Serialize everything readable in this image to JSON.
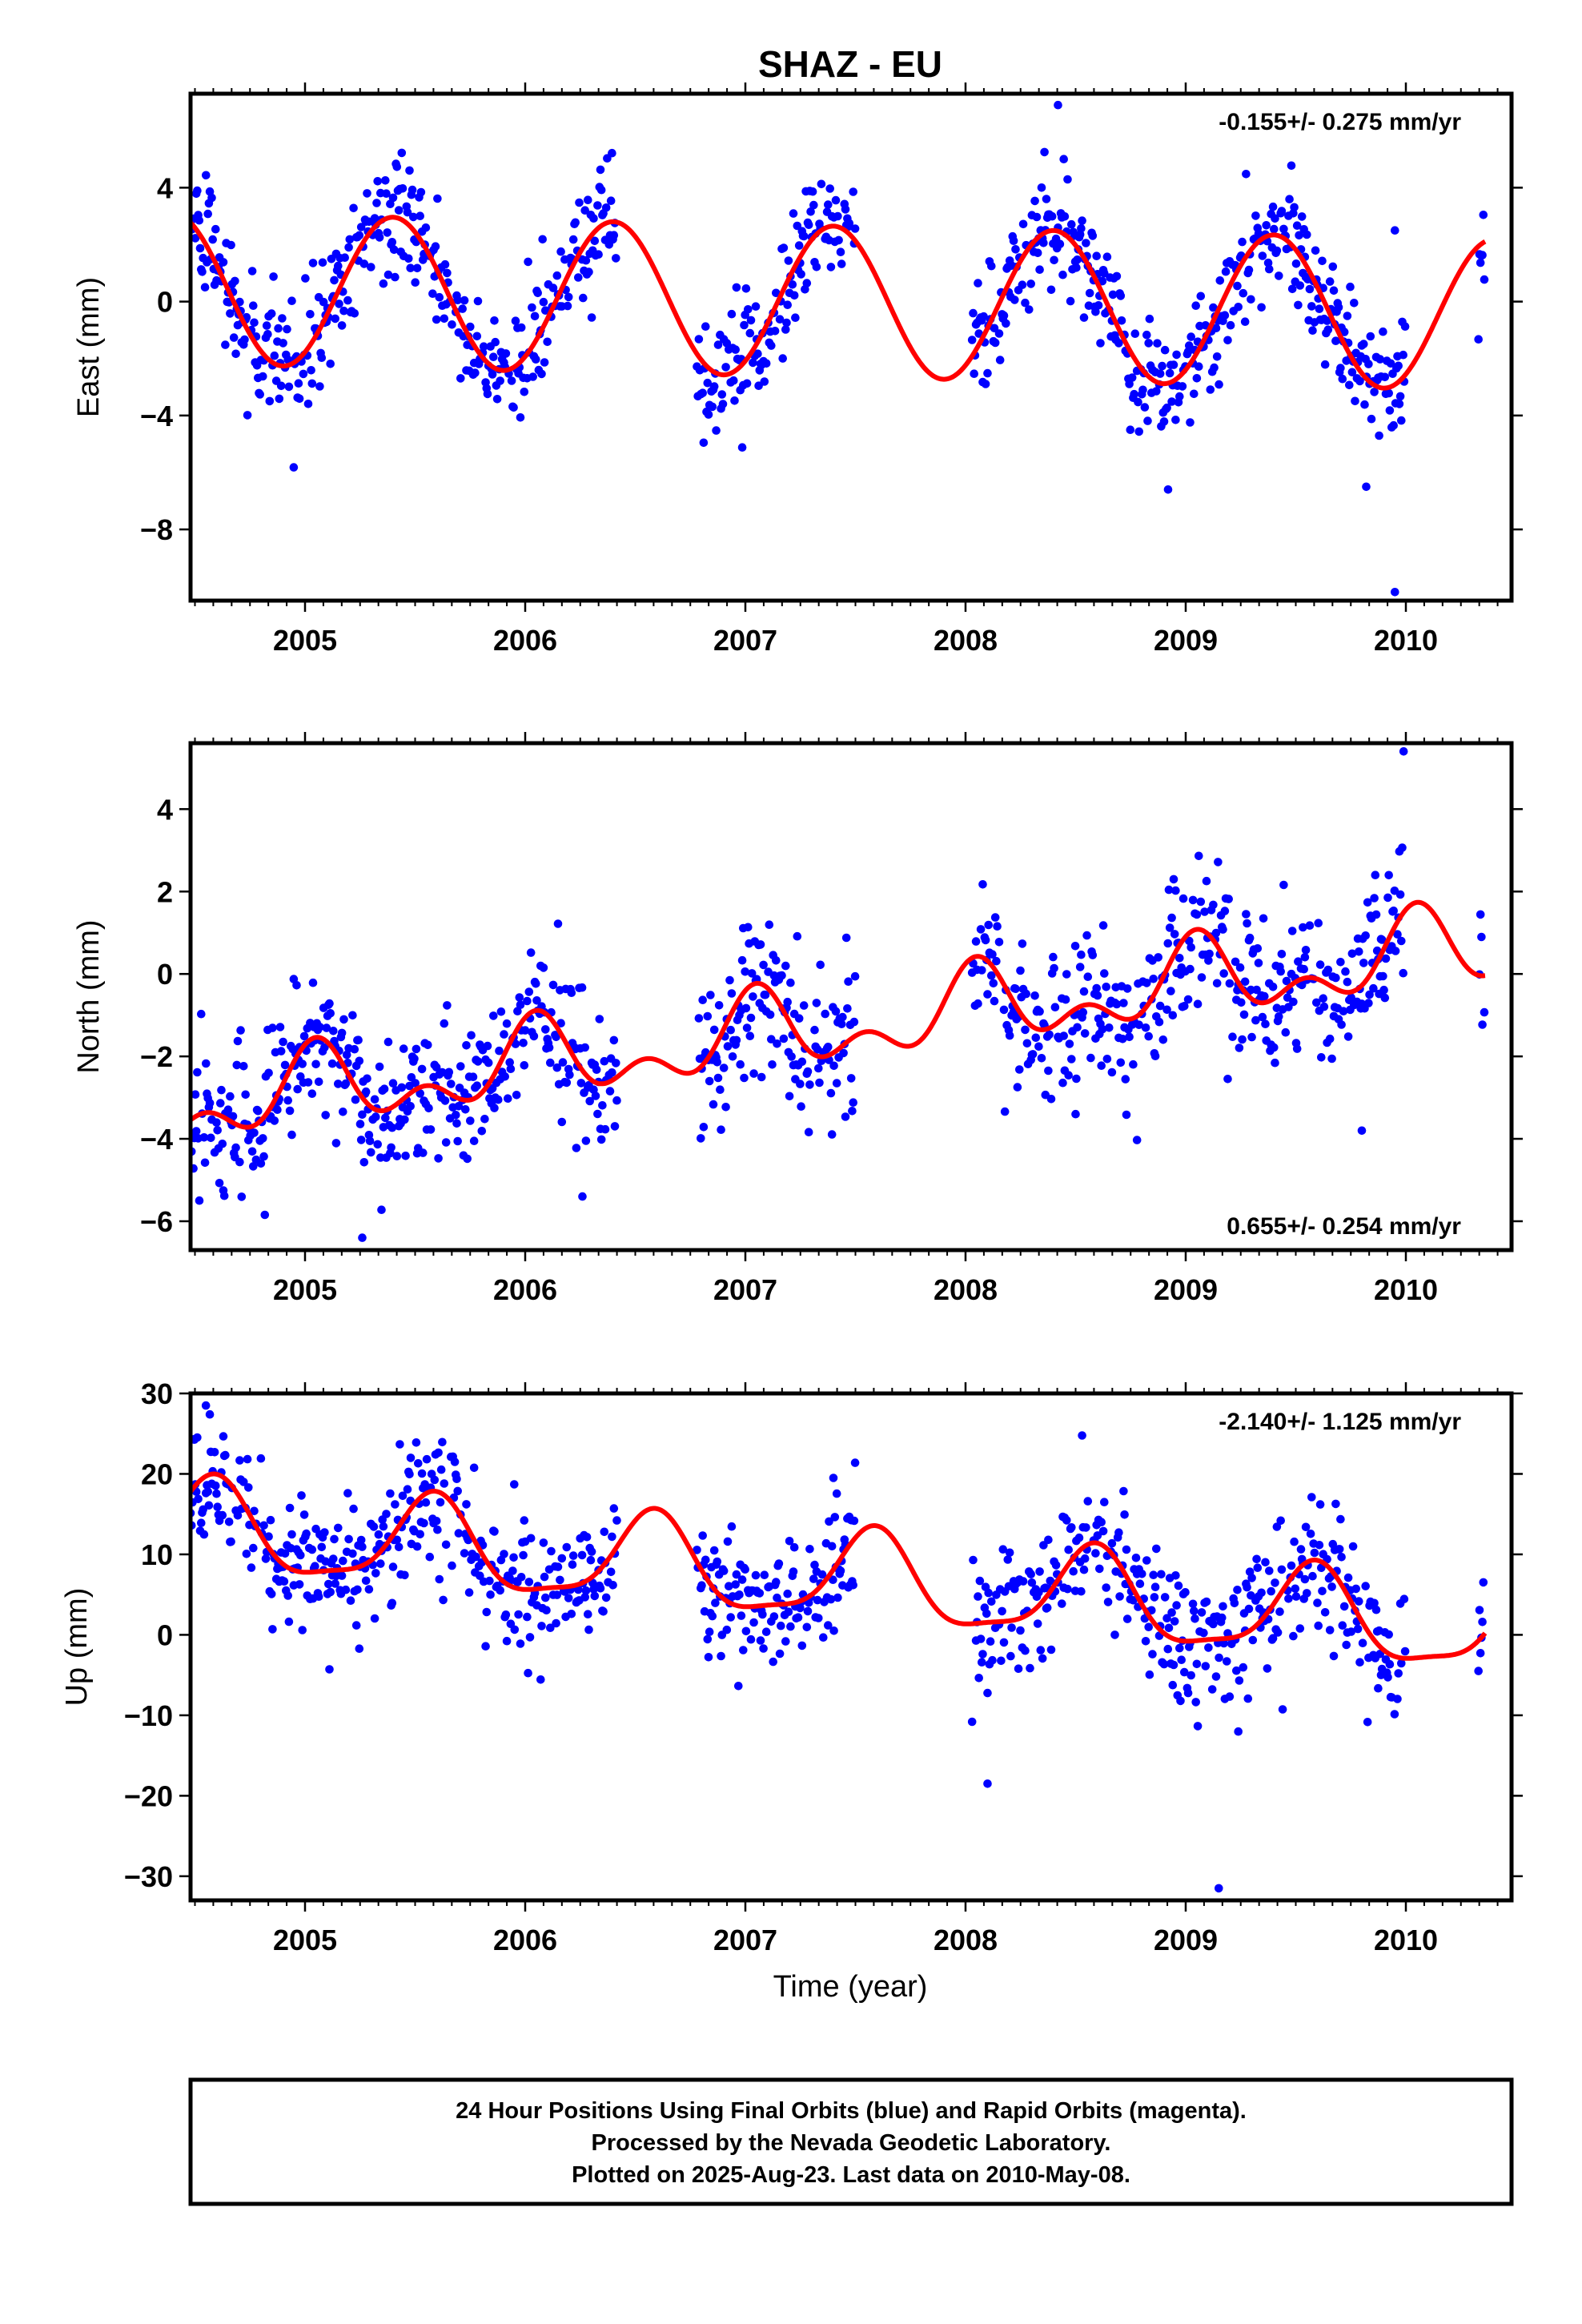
{
  "title": "SHAZ - EU",
  "xlabel": "Time (year)",
  "colors": {
    "points": "#0000ff",
    "fit": "#ff0000",
    "frame": "#000000"
  },
  "footer": {
    "line1": "24 Hour Positions Using Final Orbits (blue) and Rapid Orbits (magenta).",
    "line2": "Processed by the Nevada Geodetic Laboratory.",
    "line3": "Plotted on 2025-Aug-23. Last data on 2010-May-08."
  },
  "chart_data": [
    {
      "type": "scatter",
      "id": "east",
      "ylabel": "East (mm)",
      "rate": "-0.155+/- 0.275 mm/yr",
      "rate_position": "top-right",
      "xlim": [
        2004.48,
        2010.48
      ],
      "ylim": [
        -10.5,
        7.3
      ],
      "xticks": [
        2005,
        2006,
        2007,
        2008,
        2009,
        2010
      ],
      "yticks": [
        4,
        0,
        -4,
        -8
      ],
      "ytick_labels": [
        "4",
        "0",
        "−4",
        "−8"
      ],
      "fit": {
        "amplitude": 2.65,
        "trend_mm_per_yr": -0.155,
        "offset": 0.0,
        "peak_phase_yr": 0.4,
        "semiannual_amp": 0.0,
        "semiannual_phase": 0.0
      },
      "coverage": [
        [
          2004.48,
          2006.42
        ],
        [
          2006.78,
          2007.5
        ],
        [
          2008.03,
          2010.0
        ],
        [
          2010.33,
          2010.36
        ]
      ],
      "noise_sd": 1.05,
      "outliers": [
        [
          2009.95,
          -10.2
        ],
        [
          2008.42,
          6.9
        ],
        [
          2008.92,
          -6.6
        ],
        [
          2009.82,
          -6.5
        ],
        [
          2009.95,
          2.5
        ]
      ]
    },
    {
      "type": "scatter",
      "id": "north",
      "ylabel": "North (mm)",
      "rate": "0.655+/- 0.254 mm/yr",
      "rate_position": "bottom-right",
      "xlim": [
        2004.48,
        2010.48
      ],
      "ylim": [
        -6.7,
        5.6
      ],
      "xticks": [
        2005,
        2006,
        2007,
        2008,
        2009,
        2010
      ],
      "yticks": [
        4,
        2,
        0,
        -2,
        -4,
        -6
      ],
      "ytick_labels": [
        "4",
        "2",
        "0",
        "−2",
        "−4",
        "−6"
      ],
      "fit": {
        "amplitude": 0.75,
        "trend_mm_per_yr": 0.655,
        "offset": -1.3,
        "peak_phase_yr": 0.05,
        "semiannual_amp": 0.55,
        "semiannual_phase": 0.05
      },
      "coverage": [
        [
          2004.48,
          2006.42
        ],
        [
          2006.78,
          2007.5
        ],
        [
          2008.03,
          2010.0
        ],
        [
          2010.33,
          2010.36
        ]
      ],
      "noise_sd": 0.95,
      "outliers": [
        [
          2005.26,
          -6.4
        ],
        [
          2004.52,
          -5.5
        ],
        [
          2006.26,
          -5.4
        ],
        [
          2009.99,
          5.4
        ],
        [
          2009.8,
          -3.8
        ],
        [
          2008.5,
          -3.4
        ]
      ]
    },
    {
      "type": "scatter",
      "id": "up",
      "ylabel": "Up (mm)",
      "rate": "-2.140+/- 1.125 mm/yr",
      "rate_position": "top-right",
      "xlim": [
        2004.48,
        2010.48
      ],
      "ylim": [
        -33,
        30
      ],
      "xticks": [
        2005,
        2006,
        2007,
        2008,
        2009,
        2010
      ],
      "yticks": [
        30,
        20,
        10,
        0,
        -10,
        -20,
        -30
      ],
      "ytick_labels": [
        "30",
        "20",
        "10",
        "0",
        "−10",
        "−20",
        "−30"
      ],
      "fit": {
        "amplitude": 5.5,
        "trend_mm_per_yr": -2.14,
        "offset": 7.0,
        "peak_phase_yr": 0.58,
        "semiannual_amp": 1.5,
        "semiannual_phase": 0.1
      },
      "coverage": [
        [
          2004.48,
          2006.42
        ],
        [
          2006.78,
          2007.5
        ],
        [
          2008.03,
          2010.0
        ],
        [
          2010.33,
          2010.36
        ]
      ],
      "noise_sd": 4.3,
      "outliers": [
        [
          2004.55,
          28.5
        ],
        [
          2009.15,
          -31.5
        ],
        [
          2008.1,
          -18.5
        ],
        [
          2005.48,
          22.0
        ],
        [
          2005.95,
          18.7
        ],
        [
          2007.4,
          19.5
        ]
      ]
    }
  ]
}
